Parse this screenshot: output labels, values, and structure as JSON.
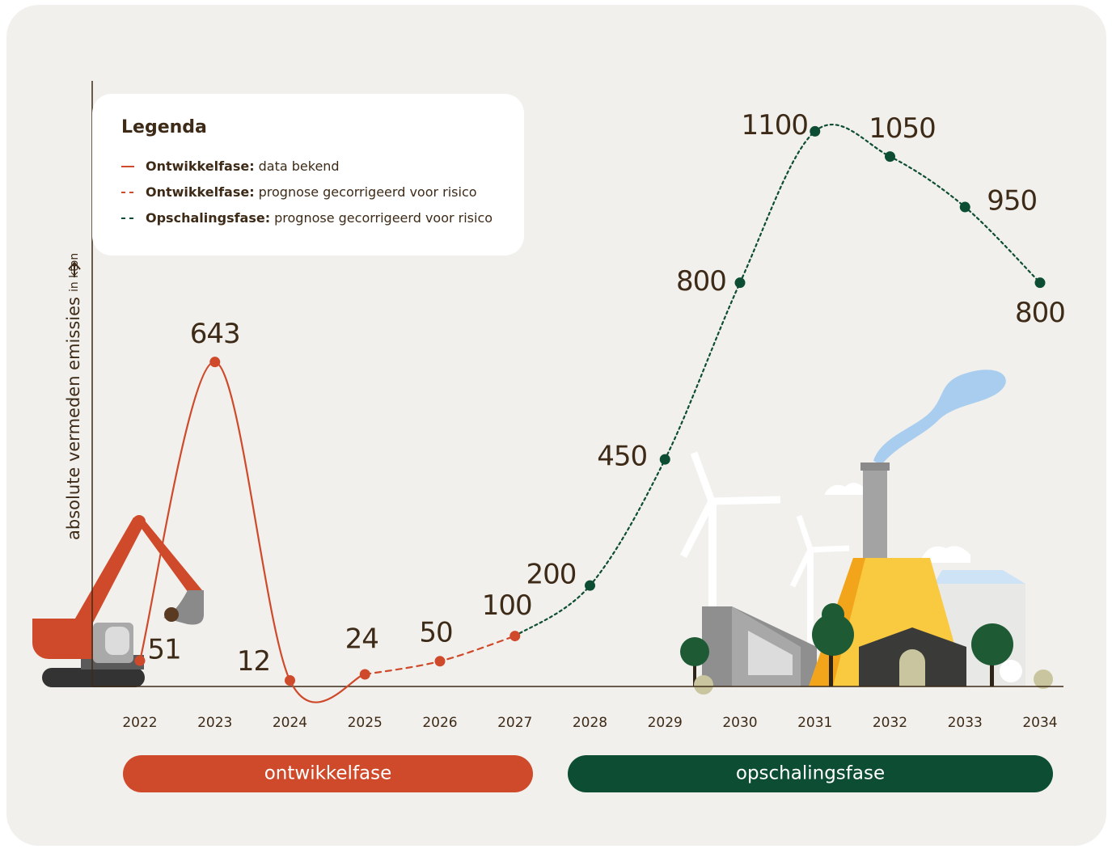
{
  "chart_data": {
    "type": "line",
    "y_axis_label": "absolute vermeden emissies",
    "y_axis_unit": "in kton",
    "legend_title": "Legenda",
    "categories": [
      "2022",
      "2023",
      "2024",
      "2025",
      "2026",
      "2027",
      "2028",
      "2029",
      "2030",
      "2031",
      "2032",
      "2033",
      "2034"
    ],
    "ylim": [
      0,
      1200
    ],
    "series": [
      {
        "name": "Ontwikkelfase:",
        "name_detail": "data bekend",
        "color": "#cf4a2b",
        "style": "solid",
        "values": [
          51,
          643,
          12,
          24,
          null,
          null,
          null,
          null,
          null,
          null,
          null,
          null,
          null
        ]
      },
      {
        "name": "Ontwikkelfase:",
        "name_detail": "prognose gecorrigeerd voor risico",
        "color": "#cf4a2b",
        "style": "dashed",
        "values": [
          null,
          null,
          null,
          24,
          50,
          100,
          null,
          null,
          null,
          null,
          null,
          null,
          null
        ]
      },
      {
        "name": "Opschalingsfase:",
        "name_detail": "prognose gecorrigeerd voor risico",
        "color": "#0d4d34",
        "style": "dotted",
        "values": [
          null,
          null,
          null,
          null,
          null,
          100,
          200,
          450,
          800,
          1100,
          1050,
          950,
          800
        ]
      }
    ],
    "phases": [
      {
        "label": "ontwikkelfase",
        "color": "#cf4a2b"
      },
      {
        "label": "opschalingsfase",
        "color": "#0d4d34"
      }
    ]
  }
}
